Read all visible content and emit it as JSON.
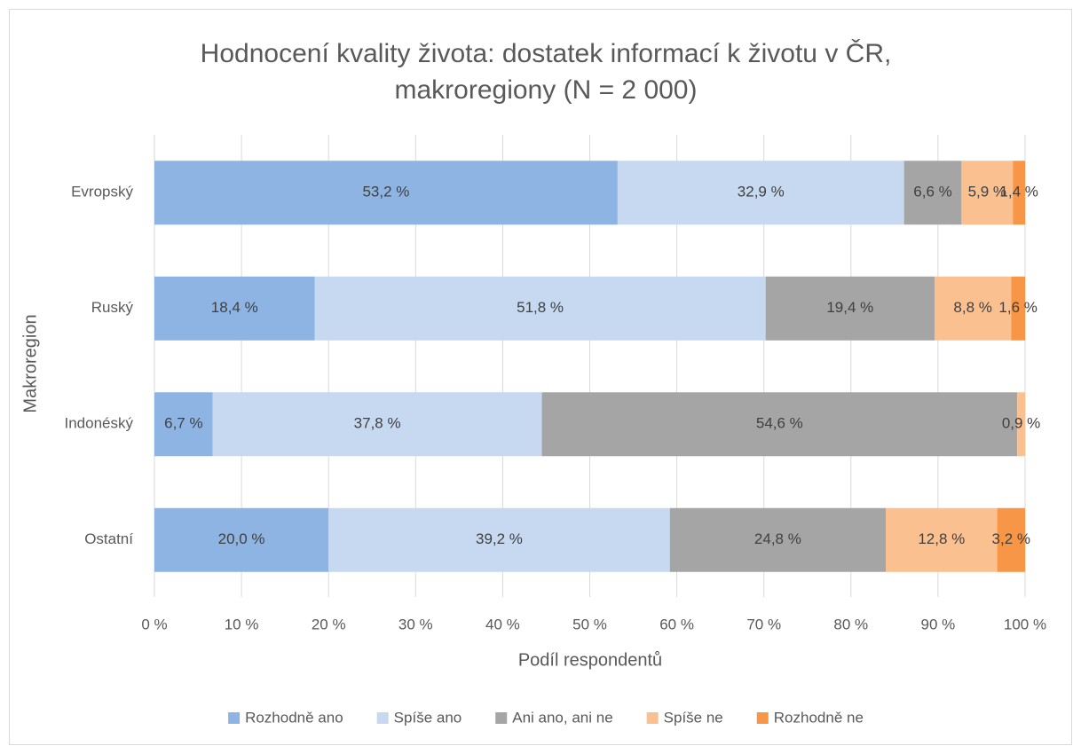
{
  "chart_data": {
    "type": "stacked-bar-horizontal",
    "title": [
      "Hodnocení kvality života: dostatek informací k životu v ČR,",
      "makroregiony (N = 2 000)"
    ],
    "x_label": "Podíl respondentů",
    "y_label": "Makroregion",
    "categories": [
      "Evropský",
      "Ruský",
      "Indonéský",
      "Ostatní"
    ],
    "series": [
      {
        "name": "Rozhodně ano",
        "color": "#8eb4e3",
        "values": [
          53.2,
          18.4,
          6.7,
          20.0
        ],
        "value_labels": [
          "53,2 %",
          "18,4 %",
          "6,7 %",
          "20,0 %"
        ]
      },
      {
        "name": "Spíše ano",
        "color": "#c6d9f1",
        "values": [
          32.9,
          51.8,
          37.8,
          39.2
        ],
        "value_labels": [
          "32,9 %",
          "51,8 %",
          "37,8 %",
          "39,2 %"
        ]
      },
      {
        "name": "Ani ano, ani ne",
        "color": "#a5a5a5",
        "values": [
          6.6,
          19.4,
          54.6,
          24.8
        ],
        "value_labels": [
          "6,6 %",
          "19,4 %",
          "54,6 %",
          "24,8 %"
        ]
      },
      {
        "name": "Spíše ne",
        "color": "#fac090",
        "values": [
          5.9,
          8.8,
          0.9,
          12.8
        ],
        "value_labels": [
          "5,9 %",
          "8,8 %",
          "0,9 %",
          "12,8 %"
        ]
      },
      {
        "name": "Rozhodně ne",
        "color": "#f79646",
        "values": [
          1.4,
          1.6,
          null,
          3.2
        ],
        "value_labels": [
          "1,4 %",
          "1,6 %",
          null,
          "3,2 %"
        ]
      }
    ],
    "xlim": [
      0,
      100
    ],
    "xticks": [
      {
        "value": 0,
        "label": "0 %"
      },
      {
        "value": 10,
        "label": "10 %"
      },
      {
        "value": 20,
        "label": "20 %"
      },
      {
        "value": 30,
        "label": "30 %"
      },
      {
        "value": 40,
        "label": "40 %"
      },
      {
        "value": 50,
        "label": "50 %"
      },
      {
        "value": 60,
        "label": "60 %"
      },
      {
        "value": 70,
        "label": "70 %"
      },
      {
        "value": 80,
        "label": "80 %"
      },
      {
        "value": 90,
        "label": "90 %"
      },
      {
        "value": 100,
        "label": "100 %"
      }
    ],
    "grid": true,
    "legend": "bottom"
  }
}
